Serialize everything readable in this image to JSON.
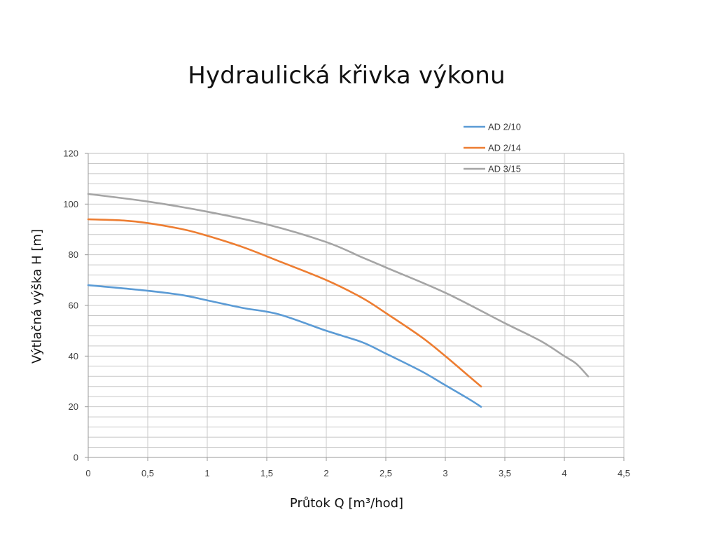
{
  "chart_data": {
    "type": "line",
    "title": "Hydraulická křivka výkonu",
    "xlabel": "Průtok Q [m³/hod]",
    "ylabel": "Výtlačná výška H [m]",
    "xlim": [
      0,
      4.5
    ],
    "ylim": [
      0,
      120
    ],
    "x_ticks": [
      "0",
      "0,5",
      "1",
      "1,5",
      "2",
      "2,5",
      "3",
      "3,5",
      "4",
      "4,5"
    ],
    "y_ticks": [
      "0",
      "20",
      "40",
      "60",
      "80",
      "100",
      "120"
    ],
    "grid": true,
    "legend_position": "top-right",
    "series": [
      {
        "name": "AD 2/10",
        "color": "#5B9BD5",
        "points": [
          [
            0,
            68
          ],
          [
            0.5,
            65.8
          ],
          [
            0.8,
            64
          ],
          [
            1.0,
            62
          ],
          [
            1.3,
            59
          ],
          [
            1.6,
            56.5
          ],
          [
            2.0,
            50
          ],
          [
            2.3,
            45.5
          ],
          [
            2.5,
            41
          ],
          [
            2.8,
            34
          ],
          [
            3.0,
            28.5
          ],
          [
            3.2,
            23
          ],
          [
            3.3,
            20
          ]
        ]
      },
      {
        "name": "AD 2/14",
        "color": "#ED7D31",
        "points": [
          [
            0,
            94
          ],
          [
            0.3,
            93.5
          ],
          [
            0.5,
            92.5
          ],
          [
            0.8,
            90
          ],
          [
            1.0,
            87.5
          ],
          [
            1.3,
            83
          ],
          [
            1.6,
            77.5
          ],
          [
            2.0,
            70
          ],
          [
            2.3,
            63
          ],
          [
            2.5,
            57
          ],
          [
            2.8,
            47.5
          ],
          [
            3.0,
            40
          ],
          [
            3.2,
            32
          ],
          [
            3.3,
            28
          ]
        ]
      },
      {
        "name": "AD 3/15",
        "color": "#A5A5A5",
        "points": [
          [
            0,
            104
          ],
          [
            0.5,
            101
          ],
          [
            1.0,
            97
          ],
          [
            1.5,
            92
          ],
          [
            2.0,
            85
          ],
          [
            2.3,
            79
          ],
          [
            2.5,
            75
          ],
          [
            3.0,
            65
          ],
          [
            3.5,
            53
          ],
          [
            3.8,
            46
          ],
          [
            4.0,
            40
          ],
          [
            4.1,
            37
          ],
          [
            4.2,
            32
          ]
        ]
      }
    ]
  }
}
